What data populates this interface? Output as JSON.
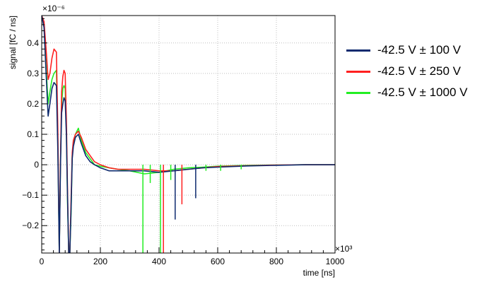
{
  "chart_data": {
    "type": "line",
    "xlabel": "time [ns]",
    "ylabel": "signal [fC / ns]",
    "x_exponent": "×10³",
    "y_exponent": "×10⁻⁶",
    "xlim": [
      0,
      1000
    ],
    "ylim": [
      -0.29,
      0.49
    ],
    "x_ticks": [
      0,
      200,
      400,
      600,
      800,
      1000
    ],
    "x_tick_labels": [
      "0",
      "200",
      "400",
      "600",
      "800",
      "1000"
    ],
    "y_ticks": [
      -0.2,
      -0.1,
      0,
      0.1,
      0.2,
      0.3,
      0.4
    ],
    "y_tick_labels": [
      "−0.2",
      "−0.1",
      "0",
      "0.1",
      "0.2",
      "0.3",
      "0.4"
    ],
    "grid": true,
    "legend_position": "right",
    "series": [
      {
        "name": "-42.5 V ± 100 V",
        "color": "#0d2a6e",
        "x": [
          0,
          8,
          15,
          22,
          28,
          35,
          42,
          50,
          55,
          60,
          64,
          68,
          72,
          76,
          80,
          84,
          88,
          92,
          96,
          100,
          104,
          108,
          115,
          125,
          135,
          150,
          165,
          180,
          200,
          230,
          260,
          300,
          350,
          400,
          450,
          500,
          550,
          600,
          700,
          800,
          900,
          1000
        ],
        "y": [
          0.49,
          0.45,
          0.3,
          0.16,
          0.2,
          0.25,
          0.27,
          0.26,
          0.05,
          -0.29,
          0.0,
          0.17,
          0.2,
          0.22,
          0.21,
          0.1,
          -0.1,
          -0.29,
          -0.29,
          -0.15,
          0.02,
          0.06,
          0.09,
          0.1,
          0.07,
          0.03,
          0.01,
          0.0,
          -0.01,
          -0.02,
          -0.02,
          -0.02,
          -0.02,
          -0.025,
          -0.02,
          -0.015,
          -0.01,
          -0.008,
          -0.004,
          -0.002,
          0.0,
          0.0
        ]
      },
      {
        "name": "-42.5 V ± 250 V",
        "color": "#ff2020",
        "x": [
          0,
          8,
          15,
          22,
          28,
          35,
          42,
          50,
          55,
          60,
          64,
          68,
          72,
          76,
          80,
          84,
          88,
          92,
          96,
          100,
          104,
          108,
          115,
          125,
          135,
          150,
          165,
          180,
          200,
          230,
          260,
          300,
          350,
          400,
          450,
          500,
          550,
          600,
          700,
          800,
          900,
          1000
        ],
        "y": [
          0.49,
          0.47,
          0.38,
          0.28,
          0.3,
          0.35,
          0.38,
          0.37,
          0.12,
          -0.29,
          0.02,
          0.24,
          0.29,
          0.31,
          0.3,
          0.15,
          -0.08,
          -0.29,
          -0.29,
          -0.12,
          0.04,
          0.08,
          0.1,
          0.11,
          0.09,
          0.05,
          0.03,
          0.01,
          0.0,
          -0.01,
          -0.015,
          -0.015,
          -0.015,
          -0.02,
          -0.02,
          -0.015,
          -0.01,
          -0.006,
          -0.003,
          -0.001,
          0.0,
          0.0
        ]
      },
      {
        "name": "-42.5 V ± 1000 V",
        "color": "#22ee22",
        "x": [
          0,
          8,
          15,
          22,
          28,
          35,
          42,
          50,
          55,
          60,
          64,
          68,
          72,
          76,
          80,
          84,
          88,
          92,
          96,
          100,
          104,
          108,
          115,
          125,
          135,
          150,
          165,
          180,
          200,
          230,
          260,
          300,
          350,
          400,
          450,
          500,
          550,
          600,
          700,
          800,
          900,
          1000
        ],
        "y": [
          0.49,
          0.46,
          0.32,
          0.2,
          0.24,
          0.28,
          0.3,
          0.31,
          0.08,
          -0.29,
          0.01,
          0.2,
          0.25,
          0.26,
          0.25,
          0.12,
          -0.12,
          -0.29,
          -0.29,
          -0.16,
          0.03,
          0.07,
          0.1,
          0.12,
          0.08,
          0.04,
          0.02,
          0.0,
          -0.005,
          -0.01,
          -0.015,
          -0.02,
          -0.03,
          -0.025,
          -0.015,
          -0.01,
          -0.008,
          -0.005,
          -0.002,
          -0.001,
          0.0,
          0.0
        ]
      }
    ],
    "spikes": [
      {
        "series": 2,
        "x": 345,
        "y": -0.29
      },
      {
        "series": 2,
        "x": 405,
        "y": -0.29
      },
      {
        "series": 1,
        "x": 415,
        "y": -0.29
      },
      {
        "series": 0,
        "x": 455,
        "y": -0.18
      },
      {
        "series": 1,
        "x": 478,
        "y": -0.13
      },
      {
        "series": 0,
        "x": 525,
        "y": -0.11
      },
      {
        "series": 2,
        "x": 370,
        "y": -0.06
      },
      {
        "series": 2,
        "x": 440,
        "y": -0.05
      },
      {
        "series": 2,
        "x": 560,
        "y": -0.02
      },
      {
        "series": 2,
        "x": 610,
        "y": -0.02
      },
      {
        "series": 2,
        "x": 680,
        "y": -0.015
      }
    ]
  }
}
